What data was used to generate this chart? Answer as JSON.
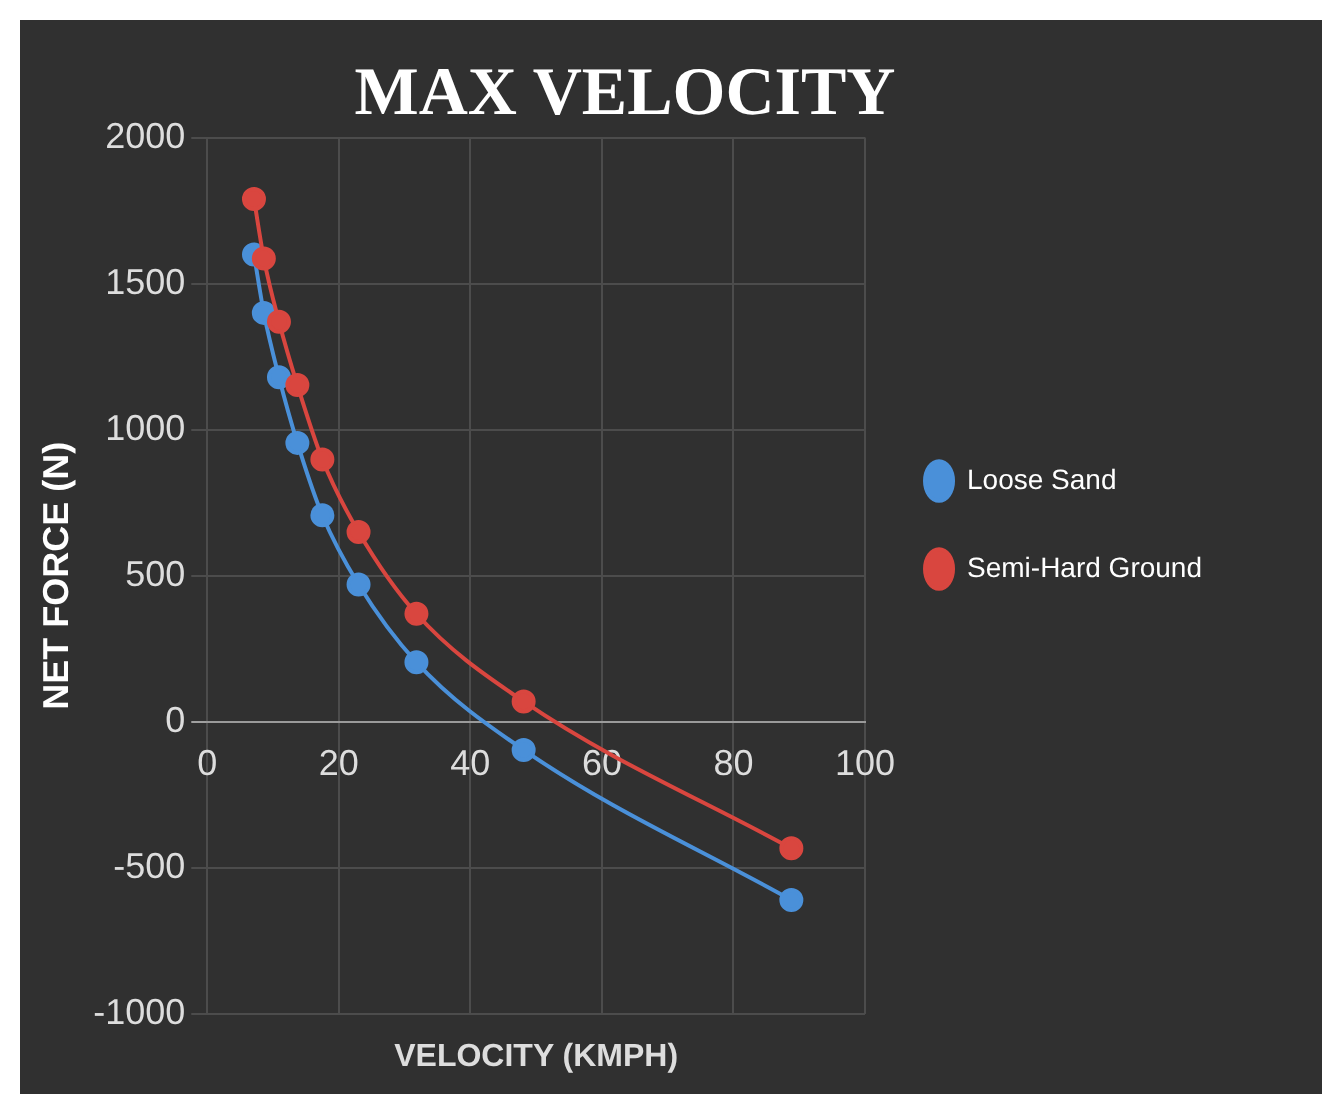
{
  "chart_data": {
    "type": "line",
    "title": "MAX VELOCITY",
    "xlabel": "VELOCITY (KMPH)",
    "ylabel": "NET FORCE (N)",
    "series": [
      {
        "name": "Loose Sand",
        "color": "#4a90d9",
        "x": [
          7.1,
          8.6,
          10.9,
          13.7,
          17.5,
          23,
          31.8,
          48.1,
          88.8
        ],
        "values": [
          1600,
          1400,
          1180,
          955,
          707,
          470,
          204,
          -96,
          -610
        ]
      },
      {
        "name": "Semi-Hard Ground",
        "color": "#d9463f",
        "x": [
          7.1,
          8.6,
          10.9,
          13.7,
          17.5,
          23,
          31.8,
          48.1,
          88.8
        ],
        "values": [
          1790,
          1586,
          1370,
          1153,
          898,
          650,
          370,
          70,
          -433
        ]
      }
    ],
    "xlim": [
      0,
      100
    ],
    "xticks": [
      0,
      20,
      40,
      60,
      80,
      100
    ],
    "ylim": [
      -1000,
      2000
    ],
    "yticks": [
      -1000,
      -500,
      0,
      500,
      1000,
      1500,
      2000
    ],
    "grid": true,
    "legend": "right",
    "marker": "circle"
  }
}
